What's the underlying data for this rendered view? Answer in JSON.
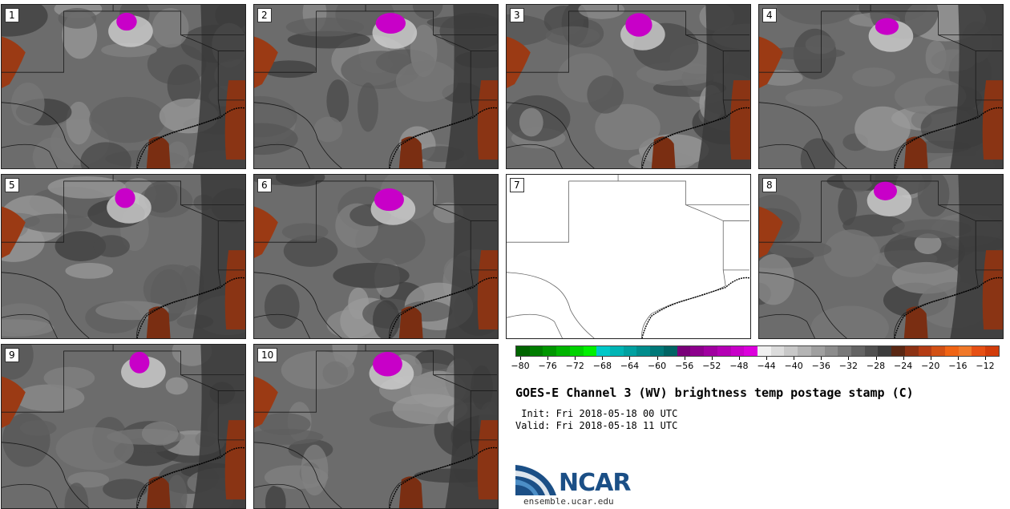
{
  "panels": [
    {
      "label": "1",
      "has_data": true
    },
    {
      "label": "2",
      "has_data": true
    },
    {
      "label": "3",
      "has_data": true
    },
    {
      "label": "4",
      "has_data": true
    },
    {
      "label": "5",
      "has_data": true
    },
    {
      "label": "6",
      "has_data": true
    },
    {
      "label": "7",
      "has_data": false
    },
    {
      "label": "8",
      "has_data": true
    },
    {
      "label": "9",
      "has_data": true
    },
    {
      "label": "10",
      "has_data": true
    }
  ],
  "colorbar": {
    "colors": [
      "#006400",
      "#007d00",
      "#009600",
      "#00b400",
      "#00d200",
      "#00f000",
      "#00c8c8",
      "#00b4b4",
      "#00a0a0",
      "#008c8c",
      "#007878",
      "#006464",
      "#780078",
      "#8c008c",
      "#a000a0",
      "#b400b4",
      "#c800c8",
      "#dc00dc",
      "#f0f0f0",
      "#dcdcdc",
      "#c8c8c8",
      "#b4b4b4",
      "#a0a0a0",
      "#8c8c8c",
      "#787878",
      "#646464",
      "#505050",
      "#3c3c3c",
      "#5a2814",
      "#8c3214",
      "#b43c14",
      "#d25014",
      "#f06414",
      "#f07828",
      "#e65014",
      "#d23c0a"
    ],
    "ticks": [
      "−80",
      "−76",
      "−72",
      "−68",
      "−64",
      "−60",
      "−56",
      "−52",
      "−48",
      "−44",
      "−40",
      "−36",
      "−32",
      "−28",
      "−24",
      "−20",
      "−16",
      "−12"
    ]
  },
  "title": "GOES-E Channel 3 (WV) brightness temp postage stamp (C)",
  "init": " Init: Fri 2018-05-18 00 UTC",
  "valid": "Valid: Fri 2018-05-18 11 UTC",
  "logo": {
    "text": "NCAR",
    "url": "ensemble.ucar.edu",
    "color": "#1b4f86"
  }
}
